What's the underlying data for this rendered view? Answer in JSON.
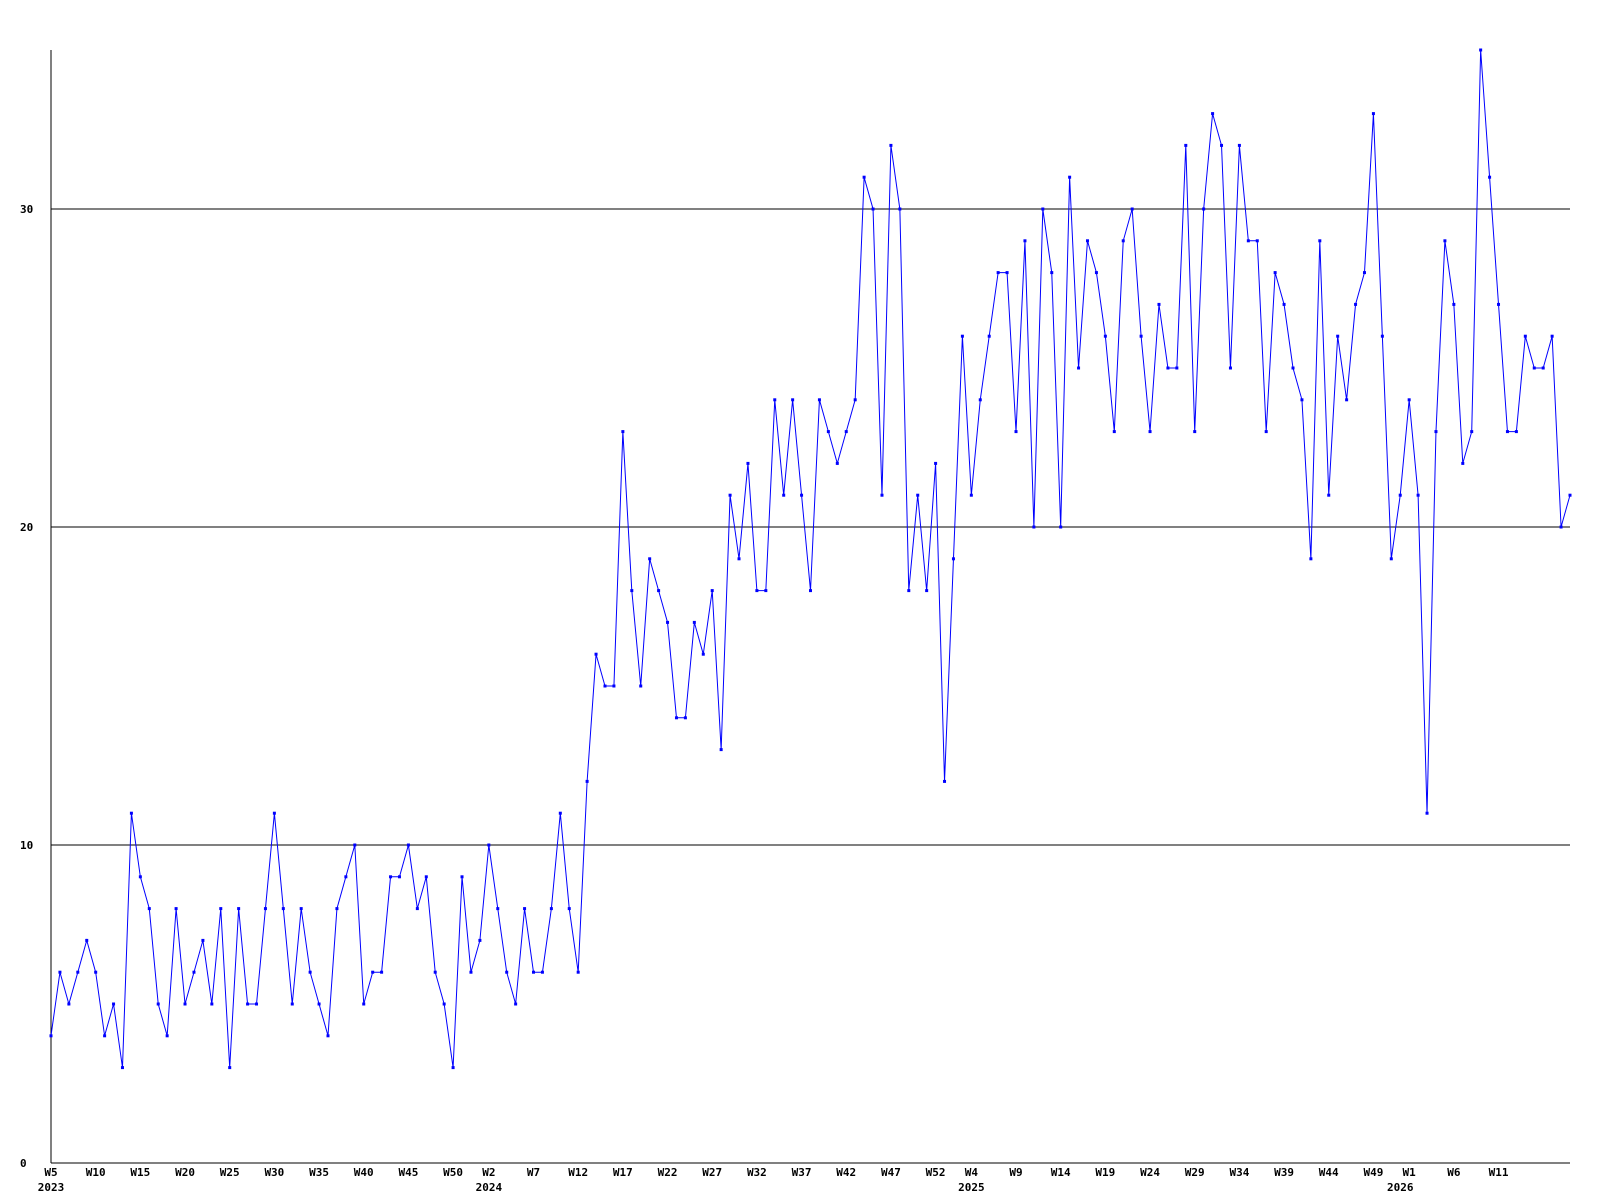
{
  "chart_data": {
    "type": "line",
    "categories": [
      "W5",
      null,
      null,
      null,
      null,
      "W10",
      null,
      null,
      null,
      null,
      "W15",
      null,
      null,
      null,
      null,
      "W20",
      null,
      null,
      null,
      null,
      "W25",
      null,
      null,
      null,
      null,
      "W30",
      null,
      null,
      null,
      null,
      "W35",
      null,
      null,
      null,
      null,
      "W40",
      null,
      null,
      null,
      null,
      "W45",
      null,
      null,
      null,
      null,
      "W50",
      null,
      null,
      null,
      "W2",
      null,
      null,
      null,
      null,
      "W7",
      null,
      null,
      null,
      null,
      "W12",
      null,
      null,
      null,
      null,
      "W17",
      null,
      null,
      null,
      null,
      "W22",
      null,
      null,
      null,
      null,
      "W27",
      null,
      null,
      null,
      null,
      "W32",
      null,
      null,
      null,
      null,
      "W37",
      null,
      null,
      null,
      null,
      "W42",
      null,
      null,
      null,
      null,
      "W47",
      null,
      null,
      null,
      null,
      "W52",
      null,
      null,
      null,
      "W4",
      null,
      null,
      null,
      null,
      "W9",
      null,
      null,
      null,
      null,
      "W14",
      null,
      null,
      null,
      null,
      "W19",
      null,
      null,
      null,
      null,
      "W24",
      null,
      null,
      null,
      null,
      "W29",
      null,
      null,
      null,
      null,
      "W34",
      null,
      null,
      null,
      null,
      "W39",
      null,
      null,
      null,
      null,
      "W44",
      null,
      null,
      null,
      null,
      "W49",
      null,
      null,
      null,
      "W1",
      null,
      null,
      null,
      null,
      "W6",
      null,
      null,
      null,
      null,
      "W11",
      null,
      null,
      null,
      null,
      null,
      null,
      null,
      null
    ],
    "category_years": [
      "2023",
      null,
      null,
      null,
      null,
      null,
      null,
      null,
      null,
      null,
      null,
      null,
      null,
      null,
      null,
      null,
      null,
      null,
      null,
      null,
      null,
      null,
      null,
      null,
      null,
      null,
      null,
      null,
      null,
      null,
      null,
      null,
      null,
      null,
      null,
      null,
      null,
      null,
      null,
      null,
      null,
      null,
      null,
      null,
      null,
      null,
      null,
      null,
      null,
      "2024",
      null,
      null,
      null,
      null,
      null,
      null,
      null,
      null,
      null,
      null,
      null,
      null,
      null,
      null,
      null,
      null,
      null,
      null,
      null,
      null,
      null,
      null,
      null,
      null,
      null,
      null,
      null,
      null,
      null,
      null,
      null,
      null,
      null,
      null,
      null,
      null,
      null,
      null,
      null,
      null,
      null,
      null,
      null,
      null,
      null,
      null,
      null,
      null,
      null,
      null,
      null,
      null,
      null,
      "2025",
      null,
      null,
      null,
      null,
      null,
      null,
      null,
      null,
      null,
      null,
      null,
      null,
      null,
      null,
      null,
      null,
      null,
      null,
      null,
      null,
      null,
      null,
      null,
      null,
      null,
      null,
      null,
      null,
      null,
      null,
      null,
      null,
      null,
      null,
      null,
      null,
      null,
      null,
      null,
      null,
      null,
      null,
      null,
      null,
      null,
      null,
      null,
      "2026",
      null,
      null,
      null,
      null,
      null,
      null,
      null,
      null,
      null,
      null,
      null,
      null,
      null,
      null,
      null,
      null,
      null,
      null
    ],
    "series": [
      {
        "color": "#0000ff",
        "values": [
          4,
          6,
          5,
          6,
          7,
          6,
          4,
          5,
          3,
          11,
          9,
          8,
          5,
          4,
          8,
          5,
          6,
          7,
          5,
          8,
          3,
          8,
          5,
          5,
          8,
          11,
          8,
          5,
          8,
          6,
          5,
          4,
          8,
          9,
          10,
          5,
          6,
          6,
          9,
          9,
          10,
          8,
          9,
          6,
          5,
          3,
          9,
          6,
          7,
          10,
          8,
          6,
          5,
          8,
          6,
          6,
          8,
          11,
          8,
          6,
          12,
          16,
          15,
          15,
          23,
          18,
          15,
          19,
          18,
          17,
          14,
          14,
          17,
          16,
          18,
          13,
          21,
          19,
          22,
          18,
          18,
          24,
          21,
          24,
          21,
          18,
          24,
          23,
          22,
          23,
          24,
          31,
          30,
          21,
          32,
          30,
          18,
          21,
          18,
          22,
          12,
          19,
          26,
          21,
          24,
          26,
          28,
          28,
          23,
          29,
          20,
          30,
          28,
          20,
          31,
          25,
          29,
          28,
          26,
          23,
          29,
          30,
          26,
          23,
          27,
          25,
          25,
          32,
          23,
          30,
          33,
          32,
          25,
          32,
          29,
          29,
          23,
          28,
          27,
          25,
          24,
          19,
          29,
          21,
          26,
          24,
          27,
          28,
          33,
          26,
          19,
          21,
          24,
          21,
          11,
          23,
          29,
          27,
          22,
          23,
          35,
          31,
          27,
          23,
          23,
          26,
          25,
          25,
          26,
          20,
          21
        ]
      }
    ],
    "ylim": [
      0,
      35
    ],
    "yticks": [
      0,
      10,
      20,
      30
    ],
    "grid": true
  }
}
